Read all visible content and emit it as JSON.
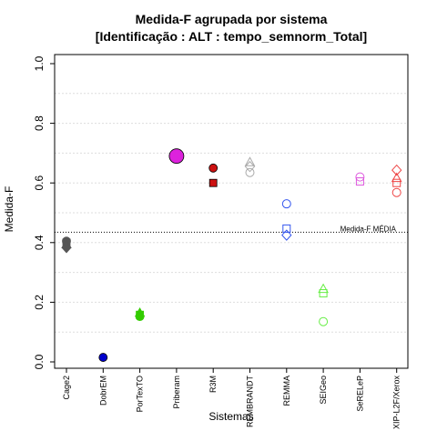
{
  "chart_data": {
    "type": "scatter",
    "title": "Medida-F agrupada por sistema",
    "subtitle": "[Identificação : ALT : tempo_semnorm_Total]",
    "xlabel": "Sistemas",
    "ylabel": "Medida-F",
    "ylim": [
      0.0,
      1.0
    ],
    "yticks": [
      "0.0",
      "0.2",
      "0.4",
      "0.6",
      "0.8",
      "1.0"
    ],
    "grid": "horizontal dotted",
    "categories": [
      "Cage2",
      "DobrEM",
      "PorTexTO",
      "Priberam",
      "R3M",
      "REMBRANDT",
      "REMMA",
      "SEIGeo",
      "SeRELeP",
      "XIP-L2F/Xerox"
    ],
    "reference_line": {
      "label": "Medida-F MÉDIA",
      "value": 0.435
    },
    "series": [
      {
        "category": "Cage2",
        "color": "#555555",
        "points": [
          {
            "y": 0.405,
            "shape": "circle",
            "fill": true
          },
          {
            "y": 0.4,
            "shape": "square",
            "fill": true
          },
          {
            "y": 0.395,
            "shape": "triangle",
            "fill": true
          },
          {
            "y": 0.383,
            "shape": "diamond",
            "fill": true
          }
        ]
      },
      {
        "category": "DobrEM",
        "color": "#0000cc",
        "points": [
          {
            "y": 0.015,
            "shape": "circle",
            "fill": true
          }
        ]
      },
      {
        "category": "PorTexTO",
        "color": "#33cc00",
        "points": [
          {
            "y": 0.165,
            "shape": "triangle",
            "fill": true
          },
          {
            "y": 0.158,
            "shape": "square",
            "fill": true
          },
          {
            "y": 0.152,
            "shape": "circle",
            "fill": true
          }
        ]
      },
      {
        "category": "Priberam",
        "color": "#dd22dd",
        "points": [
          {
            "y": 0.69,
            "shape": "circle",
            "fill": true,
            "big": true
          }
        ]
      },
      {
        "category": "R3M",
        "color": "#cc1111",
        "points": [
          {
            "y": 0.65,
            "shape": "circle",
            "fill": true
          },
          {
            "y": 0.6,
            "shape": "square",
            "fill": true
          }
        ]
      },
      {
        "category": "REMBRANDT",
        "color": "#aaaaaa",
        "points": [
          {
            "y": 0.67,
            "shape": "triangle",
            "fill": false
          },
          {
            "y": 0.655,
            "shape": "diamond",
            "fill": false
          },
          {
            "y": 0.635,
            "shape": "circle",
            "fill": false
          }
        ]
      },
      {
        "category": "REMMA",
        "color": "#3355ee",
        "points": [
          {
            "y": 0.53,
            "shape": "circle",
            "fill": false
          },
          {
            "y": 0.447,
            "shape": "square",
            "fill": false
          },
          {
            "y": 0.425,
            "shape": "diamond",
            "fill": false
          }
        ]
      },
      {
        "category": "SEIGeo",
        "color": "#66ee44",
        "points": [
          {
            "y": 0.245,
            "shape": "triangle",
            "fill": false
          },
          {
            "y": 0.23,
            "shape": "square",
            "fill": false
          },
          {
            "y": 0.135,
            "shape": "circle",
            "fill": false
          }
        ]
      },
      {
        "category": "SeRELeP",
        "color": "#dd55dd",
        "points": [
          {
            "y": 0.62,
            "shape": "circle",
            "fill": false
          },
          {
            "y": 0.605,
            "shape": "square",
            "fill": false
          }
        ]
      },
      {
        "category": "XIP-L2F/Xerox",
        "color": "#ee4444",
        "points": [
          {
            "y": 0.643,
            "shape": "diamond",
            "fill": false
          },
          {
            "y": 0.617,
            "shape": "triangle",
            "fill": false
          },
          {
            "y": 0.6,
            "shape": "square",
            "fill": false
          },
          {
            "y": 0.568,
            "shape": "circle",
            "fill": false
          }
        ]
      }
    ]
  }
}
